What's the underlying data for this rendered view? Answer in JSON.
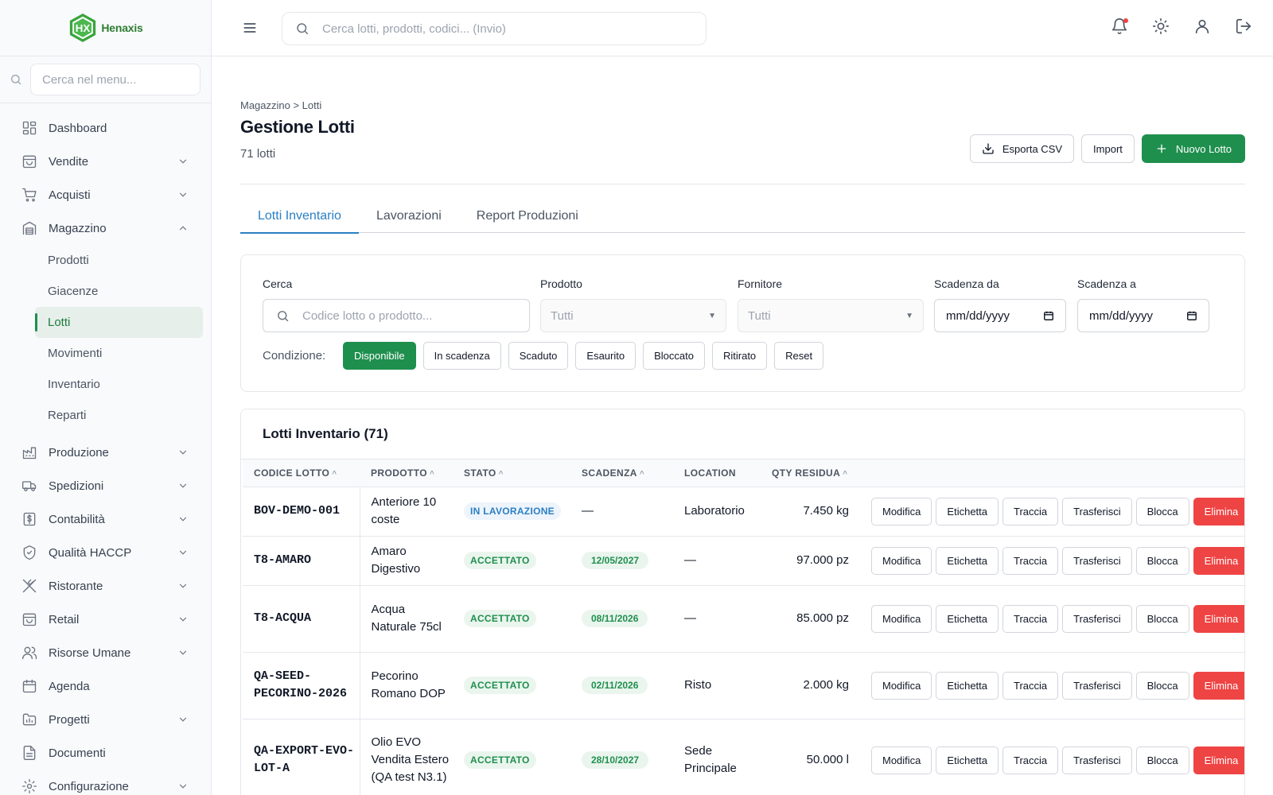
{
  "brand": {
    "name": "Henaxis",
    "mark": "HX"
  },
  "sidebar": {
    "search_placeholder": "Cerca nel menu...",
    "items": [
      {
        "key": "dashboard",
        "label": "Dashboard",
        "icon": "grid-icon",
        "expandable": false
      },
      {
        "key": "vendite",
        "label": "Vendite",
        "icon": "bag-icon",
        "expandable": true
      },
      {
        "key": "acquisti",
        "label": "Acquisti",
        "icon": "cart-icon",
        "expandable": true
      },
      {
        "key": "magazzino",
        "label": "Magazzino",
        "icon": "warehouse-icon",
        "expandable": true,
        "expanded": true,
        "children": [
          {
            "label": "Prodotti"
          },
          {
            "label": "Giacenze"
          },
          {
            "label": "Lotti",
            "active": true
          },
          {
            "label": "Movimenti"
          },
          {
            "label": "Inventario"
          },
          {
            "label": "Reparti"
          }
        ]
      },
      {
        "key": "produzione",
        "label": "Produzione",
        "icon": "factory-icon",
        "expandable": true
      },
      {
        "key": "spedizioni",
        "label": "Spedizioni",
        "icon": "truck-icon",
        "expandable": true
      },
      {
        "key": "contabilita",
        "label": "Contabilità",
        "icon": "dollar-icon",
        "expandable": true
      },
      {
        "key": "haccp",
        "label": "Qualità HACCP",
        "icon": "shield-icon",
        "expandable": true
      },
      {
        "key": "ristorante",
        "label": "Ristorante",
        "icon": "utensils-icon",
        "expandable": true
      },
      {
        "key": "retail",
        "label": "Retail",
        "icon": "bag-icon",
        "expandable": true
      },
      {
        "key": "risorse",
        "label": "Risorse Umane",
        "icon": "users-icon",
        "expandable": true
      },
      {
        "key": "agenda",
        "label": "Agenda",
        "icon": "calendar-icon",
        "expandable": false
      },
      {
        "key": "progetti",
        "label": "Progetti",
        "icon": "folder-icon",
        "expandable": true
      },
      {
        "key": "documenti",
        "label": "Documenti",
        "icon": "document-icon",
        "expandable": false
      },
      {
        "key": "configurazione",
        "label": "Configurazione",
        "icon": "gear-icon",
        "expandable": true
      }
    ]
  },
  "topbar": {
    "search_placeholder": "Cerca lotti, prodotti, codici... (Invio)",
    "icons": [
      "bell-icon",
      "sun-icon",
      "user-icon",
      "logout-icon"
    ]
  },
  "page": {
    "breadcrumb": "Magazzino > Lotti",
    "title": "Gestione Lotti",
    "subtitle": "71 lotti",
    "actions": {
      "export": "Esporta CSV",
      "import": "Import",
      "new": "Nuovo Lotto"
    }
  },
  "tabs": [
    {
      "label": "Lotti Inventario",
      "active": true
    },
    {
      "label": "Lavorazioni"
    },
    {
      "label": "Report Produzioni"
    }
  ],
  "filters": {
    "search": {
      "label": "Cerca",
      "placeholder": "Codice lotto o prodotto..."
    },
    "product": {
      "label": "Prodotto",
      "value": "Tutti"
    },
    "supplier": {
      "label": "Fornitore",
      "value": "Tutti"
    },
    "expiry_from": {
      "label": "Scadenza da",
      "value": "mm/dd/yyyy"
    },
    "expiry_to": {
      "label": "Scadenza a",
      "value": "mm/dd/yyyy"
    },
    "condition_label": "Condizione:",
    "conditions": [
      {
        "label": "Disponibile",
        "active": true
      },
      {
        "label": "In scadenza"
      },
      {
        "label": "Scaduto"
      },
      {
        "label": "Esaurito"
      },
      {
        "label": "Bloccato"
      },
      {
        "label": "Ritirato"
      },
      {
        "label": "Reset"
      }
    ]
  },
  "table": {
    "title": "Lotti Inventario (71)",
    "columns": [
      {
        "label": "CODICE LOTTO",
        "sortable": true
      },
      {
        "label": "PRODOTTO",
        "sortable": true
      },
      {
        "label": "STATO",
        "sortable": true
      },
      {
        "label": "SCADENZA",
        "sortable": true
      },
      {
        "label": "LOCATION",
        "sortable": false
      },
      {
        "label": "QTY RESIDUA",
        "sortable": true
      },
      {
        "label": "",
        "sortable": false
      }
    ],
    "row_actions": [
      "Modifica",
      "Etichetta",
      "Traccia",
      "Trasferisci",
      "Blocca",
      "Elimina"
    ],
    "rows": [
      {
        "code": "BOV-DEMO-001",
        "product": "Anteriore 10 coste",
        "status": "IN LAVORAZIONE",
        "status_type": "lav",
        "expiry": "—",
        "location": "Laboratorio",
        "qty": "7.450 kg"
      },
      {
        "code": "T8-AMARO",
        "product": "Amaro Digestivo",
        "status": "ACCETTATO",
        "status_type": "acc",
        "expiry": "12/05/2027",
        "location": "—",
        "qty": "97.000 pz"
      },
      {
        "code": "T8-ACQUA",
        "product": "Acqua Naturale 75cl",
        "status": "ACCETTATO",
        "status_type": "acc",
        "expiry": "08/11/2026",
        "location": "—",
        "qty": "85.000 pz"
      },
      {
        "code": "QA-SEED-PECORINO-2026",
        "product": "Pecorino Romano DOP",
        "status": "ACCETTATO",
        "status_type": "acc",
        "expiry": "02/11/2026",
        "location": "Risto",
        "qty": "2.000 kg"
      },
      {
        "code": "QA-EXPORT-EVO-LOT-A",
        "product": "Olio EVO Vendita Estero (QA test N3.1)",
        "status": "ACCETTATO",
        "status_type": "acc",
        "expiry": "28/10/2027",
        "location": "Sede Principale",
        "qty": "50.000 l"
      }
    ]
  }
}
